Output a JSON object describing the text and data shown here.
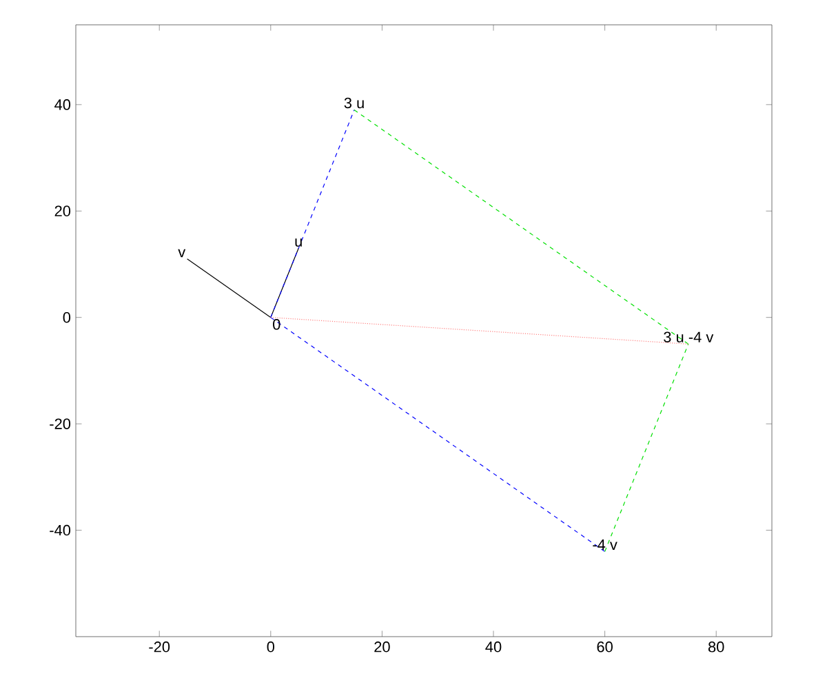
{
  "chart_data": {
    "type": "line",
    "xlim": [
      -35,
      90
    ],
    "ylim": [
      -60,
      55
    ],
    "xticks": [
      -20,
      0,
      20,
      40,
      60,
      80
    ],
    "yticks": [
      -40,
      -20,
      0,
      20,
      40
    ],
    "grid": false,
    "series": [
      {
        "color": "#000000",
        "x": [
          0,
          5
        ],
        "values": [
          0,
          13
        ],
        "line_style": "solid"
      },
      {
        "color": "#000000",
        "x": [
          0,
          -15
        ],
        "values": [
          0,
          11
        ],
        "line_style": "solid"
      },
      {
        "color": "#0000ff",
        "x": [
          0,
          15
        ],
        "values": [
          0,
          39
        ],
        "line_style": "dashed"
      },
      {
        "color": "#0000ff",
        "x": [
          0,
          60
        ],
        "values": [
          0,
          -44
        ],
        "line_style": "dashed"
      },
      {
        "color": "#00e000",
        "x": [
          15,
          75
        ],
        "values": [
          39,
          -5
        ],
        "line_style": "dashed"
      },
      {
        "color": "#00e000",
        "x": [
          60,
          75
        ],
        "values": [
          -44,
          -5
        ],
        "line_style": "dashed"
      },
      {
        "color": "#ff8080",
        "x": [
          0,
          75
        ],
        "values": [
          0,
          -5
        ],
        "line_style": "dotted"
      }
    ],
    "annotations": [
      {
        "text": "u",
        "x": 5,
        "y": 13
      },
      {
        "text": "v",
        "x": -15,
        "y": 11
      },
      {
        "text": "0",
        "x": 0,
        "y": 0
      },
      {
        "text": "3 u",
        "x": 15,
        "y": 39
      },
      {
        "text": "-4 v",
        "x": 60,
        "y": -44
      },
      {
        "text": "3 u -4 v",
        "x": 75,
        "y": -5
      }
    ]
  }
}
